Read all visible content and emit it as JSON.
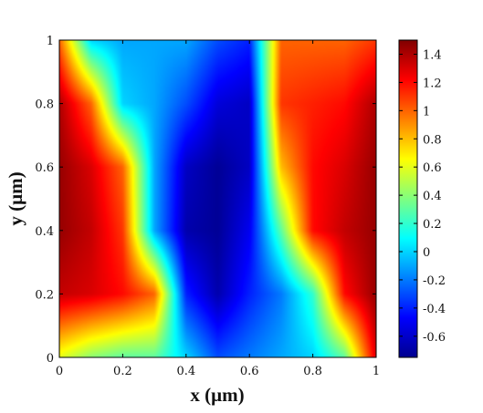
{
  "chart_data": {
    "type": "heatmap",
    "xlabel": "x (μm)",
    "ylabel": "y (μm)",
    "xlim": [
      0,
      1
    ],
    "ylim": [
      0,
      1
    ],
    "x_ticks": [
      "0",
      "0.2",
      "0.4",
      "0.6",
      "0.8",
      "1"
    ],
    "y_ticks": [
      "0",
      "0.2",
      "0.4",
      "0.6",
      "0.8",
      "1"
    ],
    "colorbar": {
      "colormap": "jet",
      "range": [
        -0.75,
        1.5
      ],
      "ticks": [
        "-0.6",
        "-0.4",
        "-0.2",
        "0",
        "0.2",
        "0.4",
        "0.6",
        "0.8",
        "1",
        "1.2",
        "1.4"
      ],
      "tick_values": [
        -0.6,
        -0.4,
        -0.2,
        0,
        0.2,
        0.4,
        0.6,
        0.8,
        1,
        1.2,
        1.4
      ]
    },
    "grid": false,
    "field_samples": {
      "x": [
        0.0,
        0.1,
        0.2,
        0.3,
        0.4,
        0.5,
        0.6,
        0.7,
        0.8,
        0.9,
        1.0
      ],
      "y": [
        0.0,
        0.2,
        0.4,
        0.6,
        0.8,
        1.0
      ],
      "z": [
        [
          0.6,
          0.4,
          0.3,
          0.3,
          0.0,
          -0.3,
          -0.2,
          -0.1,
          0.0,
          0.3,
          1.3
        ],
        [
          1.35,
          1.3,
          1.2,
          1.0,
          -0.4,
          -0.65,
          -0.4,
          -0.2,
          0.2,
          1.2,
          1.45
        ],
        [
          1.45,
          1.35,
          1.1,
          -0.1,
          -0.65,
          -0.7,
          -0.5,
          0.3,
          1.2,
          1.35,
          1.45
        ],
        [
          1.45,
          1.3,
          1.0,
          -0.1,
          -0.6,
          -0.7,
          -0.6,
          0.8,
          1.2,
          1.3,
          1.45
        ],
        [
          1.4,
          1.0,
          0.0,
          -0.1,
          -0.3,
          -0.55,
          -0.6,
          1.1,
          1.15,
          1.2,
          1.4
        ],
        [
          1.0,
          0.0,
          -0.1,
          -0.1,
          -0.1,
          -0.3,
          -0.4,
          1.0,
          1.0,
          1.0,
          1.1
        ]
      ]
    }
  }
}
